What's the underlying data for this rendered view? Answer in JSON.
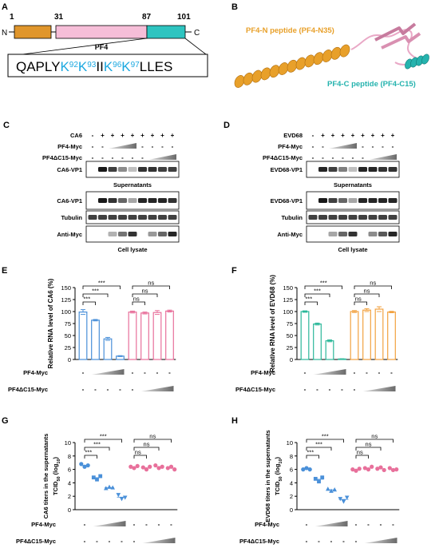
{
  "panels": {
    "A": {
      "letter": "A",
      "positions": [
        "1",
        "31",
        "87",
        "101"
      ],
      "n_term": "N",
      "c_term": "C",
      "protein": "PF4",
      "seq": [
        {
          "t": "QAPLY",
          "hl": false
        },
        {
          "t": "K",
          "hl": true
        },
        {
          "t": "92",
          "hl": true,
          "sup": true
        },
        {
          "t": "K",
          "hl": true
        },
        {
          "t": "93",
          "hl": true,
          "sup": true
        },
        {
          "t": "II",
          "hl": false
        },
        {
          "t": "K",
          "hl": true
        },
        {
          "t": "96",
          "hl": true,
          "sup": true
        },
        {
          "t": "K",
          "hl": true
        },
        {
          "t": "97",
          "hl": true,
          "sup": true
        },
        {
          "t": "LLES",
          "hl": false
        }
      ],
      "colors": {
        "n_domain": "#E0962C",
        "middle": "#F6BED8",
        "c_domain": "#2EC4C0",
        "highlight": "#1BA8E0"
      }
    },
    "B": {
      "letter": "B",
      "label_n": "PF4-N peptide (PF4-N35)",
      "label_c": "PF4-C peptide (PF4-C15)",
      "colors": {
        "n": "#E8A02A",
        "c": "#25B3AE",
        "mid": "#E9A8C6"
      }
    },
    "C": {
      "letter": "C",
      "rows": [
        {
          "label": "CA6",
          "signs": [
            "-",
            "+",
            "+",
            "+",
            "+",
            "+",
            "+",
            "+",
            "+"
          ]
        },
        {
          "label": "PF4-Myc",
          "signs": [
            "-",
            "-",
            "",
            "",
            "",
            "-",
            "-",
            "-",
            "-"
          ]
        },
        {
          "label": "PF4ΔC15-Myc",
          "signs": [
            "-",
            "-",
            "-",
            "-",
            "-",
            "-",
            "",
            "",
            ""
          ]
        }
      ],
      "blots": [
        "CA6-VP1",
        "CA6-VP1",
        "Tubulin",
        "Anti-Myc"
      ],
      "sections": [
        "Supernatants",
        "Cell lysate"
      ]
    },
    "D": {
      "letter": "D",
      "rows": [
        {
          "label": "EVD68",
          "signs": [
            "-",
            "+",
            "+",
            "+",
            "+",
            "+",
            "+",
            "+",
            "+"
          ]
        },
        {
          "label": "PF4-Myc",
          "signs": [
            "-",
            "-",
            "",
            "",
            "",
            "-",
            "-",
            "-",
            "-"
          ]
        },
        {
          "label": "PF4ΔC15-Myc",
          "signs": [
            "-",
            "-",
            "-",
            "-",
            "-",
            "-",
            "",
            "",
            ""
          ]
        }
      ],
      "blots": [
        "EVD68-VP1",
        "EVD68-VP1",
        "Tubulin",
        "Anti-Myc"
      ],
      "sections": [
        "Supernatants",
        "Cell lysate"
      ]
    }
  },
  "chart_data": [
    {
      "panel": "E",
      "type": "bar",
      "ylabel": "Relative RNA level of CA6 (%)",
      "ylim": [
        0,
        150
      ],
      "yticks": [
        0,
        25,
        50,
        75,
        100,
        125,
        150
      ],
      "values": [
        99,
        82,
        43,
        7,
        99,
        97,
        98,
        101
      ],
      "errors": [
        5,
        1.5,
        3,
        1,
        2,
        2,
        4,
        2
      ],
      "colors": [
        "#4A90D9",
        "#4A90D9",
        "#4A90D9",
        "#4A90D9",
        "#E8709B",
        "#E8709B",
        "#E8709B",
        "#E8709B"
      ],
      "sig": [
        {
          "from": 0,
          "to": 3,
          "label": "***"
        },
        {
          "from": 0,
          "to": 2,
          "label": "***"
        },
        {
          "from": 0,
          "to": 1,
          "label": "***"
        },
        {
          "from": 4,
          "to": 7,
          "label": "ns"
        },
        {
          "from": 4,
          "to": 6,
          "label": "ns"
        },
        {
          "from": 4,
          "to": 5,
          "label": "ns"
        }
      ],
      "rows": [
        {
          "label": "PF4-Myc",
          "signs": [
            "-",
            "",
            "",
            "",
            "-",
            "-",
            "-",
            "-"
          ],
          "ramp": [
            1,
            3
          ]
        },
        {
          "label": "PF4ΔC15-Myc",
          "signs": [
            "-",
            "-",
            "-",
            "-",
            "-",
            "",
            "",
            ""
          ],
          "ramp": [
            5,
            7
          ]
        }
      ]
    },
    {
      "panel": "F",
      "type": "bar",
      "ylabel": "Relative RNA level of EVD68 (%)",
      "ylim": [
        0,
        150
      ],
      "yticks": [
        0,
        25,
        50,
        75,
        100,
        125,
        150
      ],
      "values": [
        100,
        74,
        39,
        1,
        100,
        103,
        105,
        99
      ],
      "errors": [
        1.5,
        2,
        2,
        0.5,
        2,
        3,
        5,
        1.5
      ],
      "colors": [
        "#2CB89A",
        "#2CB89A",
        "#2CB89A",
        "#2CB89A",
        "#F2A240",
        "#F2A240",
        "#F2A240",
        "#F2A240"
      ],
      "sig": [
        {
          "from": 0,
          "to": 3,
          "label": "***"
        },
        {
          "from": 0,
          "to": 2,
          "label": "***"
        },
        {
          "from": 0,
          "to": 1,
          "label": "***"
        },
        {
          "from": 4,
          "to": 7,
          "label": "ns"
        },
        {
          "from": 4,
          "to": 6,
          "label": "ns"
        },
        {
          "from": 4,
          "to": 5,
          "label": "ns"
        }
      ],
      "rows": [
        {
          "label": "PF4-Myc",
          "signs": [
            "-",
            "",
            "",
            "",
            "-",
            "-",
            "-",
            "-"
          ],
          "ramp": [
            1,
            3
          ]
        },
        {
          "label": "PF4ΔC15-Myc",
          "signs": [
            "-",
            "-",
            "-",
            "-",
            "-",
            "",
            "",
            ""
          ],
          "ramp": [
            5,
            7
          ]
        }
      ]
    },
    {
      "panel": "G",
      "type": "scatter",
      "ylabel": "CA6 titers in the supernatants",
      "ylabel2": "TCID",
      "ylabel2_sub": "50",
      "ylabel2_tail": " (log",
      "ylabel2_sub2": "10",
      "ylabel2_end": ")",
      "ylim": [
        0,
        10
      ],
      "yticks": [
        0,
        2,
        4,
        6,
        8,
        10
      ],
      "points": [
        [
          6.8,
          6.4,
          6.6
        ],
        [
          4.8,
          4.5,
          5.0
        ],
        [
          3.2,
          3.4,
          3.3
        ],
        [
          2.2,
          1.6,
          1.8
        ],
        [
          6.4,
          6.2,
          6.5
        ],
        [
          6.3,
          6.0,
          6.4
        ],
        [
          6.6,
          6.2,
          6.4
        ],
        [
          6.2,
          6.4,
          6.0
        ]
      ],
      "markers": [
        "circle",
        "square",
        "triangle-up",
        "triangle-down",
        "circle",
        "circle",
        "circle",
        "circle"
      ],
      "colors": [
        "#4A90D9",
        "#4A90D9",
        "#4A90D9",
        "#4A90D9",
        "#E8709B",
        "#E8709B",
        "#E8709B",
        "#E8709B"
      ],
      "sig": [
        {
          "from": 0,
          "to": 3,
          "label": "***"
        },
        {
          "from": 0,
          "to": 2,
          "label": "***"
        },
        {
          "from": 0,
          "to": 1,
          "label": "***"
        },
        {
          "from": 4,
          "to": 7,
          "label": "ns"
        },
        {
          "from": 4,
          "to": 6,
          "label": "ns"
        },
        {
          "from": 4,
          "to": 5,
          "label": "ns"
        }
      ],
      "rows": [
        {
          "label": "PF4-Myc",
          "signs": [
            "-",
            "",
            "",
            "",
            "-",
            "-",
            "-",
            "-"
          ],
          "ramp": [
            1,
            3
          ]
        },
        {
          "label": "PF4ΔC15-Myc",
          "signs": [
            "-",
            "-",
            "-",
            "-",
            "-",
            "",
            "",
            ""
          ],
          "ramp": [
            5,
            7
          ]
        }
      ]
    },
    {
      "panel": "H",
      "type": "scatter",
      "ylabel": "EVD68 titers in the supernatants",
      "ylabel2": "TCID",
      "ylabel2_sub": "50",
      "ylabel2_tail": " (log",
      "ylabel2_sub2": "10",
      "ylabel2_end": ")",
      "ylim": [
        0,
        10
      ],
      "yticks": [
        0,
        2,
        4,
        6,
        8,
        10
      ],
      "points": [
        [
          6.0,
          6.2,
          6.0
        ],
        [
          4.6,
          4.2,
          4.8
        ],
        [
          3.1,
          2.8,
          3.0
        ],
        [
          1.6,
          1.2,
          1.8
        ],
        [
          6.0,
          5.8,
          6.1
        ],
        [
          6.2,
          6.0,
          6.4
        ],
        [
          6.1,
          6.3,
          5.9
        ],
        [
          6.2,
          5.9,
          6.0
        ]
      ],
      "markers": [
        "circle",
        "square",
        "triangle-up",
        "triangle-down",
        "circle",
        "circle",
        "circle",
        "circle"
      ],
      "colors": [
        "#4A90D9",
        "#4A90D9",
        "#4A90D9",
        "#4A90D9",
        "#E8709B",
        "#E8709B",
        "#E8709B",
        "#E8709B"
      ],
      "sig": [
        {
          "from": 0,
          "to": 3,
          "label": "***"
        },
        {
          "from": 0,
          "to": 2,
          "label": "***"
        },
        {
          "from": 0,
          "to": 1,
          "label": "***"
        },
        {
          "from": 4,
          "to": 7,
          "label": "ns"
        },
        {
          "from": 4,
          "to": 6,
          "label": "ns"
        },
        {
          "from": 4,
          "to": 5,
          "label": "ns"
        }
      ],
      "rows": [
        {
          "label": "PF4-Myc",
          "signs": [
            "-",
            "",
            "",
            "",
            "-",
            "-",
            "-",
            "-"
          ],
          "ramp": [
            1,
            3
          ]
        },
        {
          "label": "PF4ΔC15-Myc",
          "signs": [
            "-",
            "-",
            "-",
            "-",
            "-",
            "",
            "",
            ""
          ],
          "ramp": [
            5,
            7
          ]
        }
      ]
    }
  ]
}
